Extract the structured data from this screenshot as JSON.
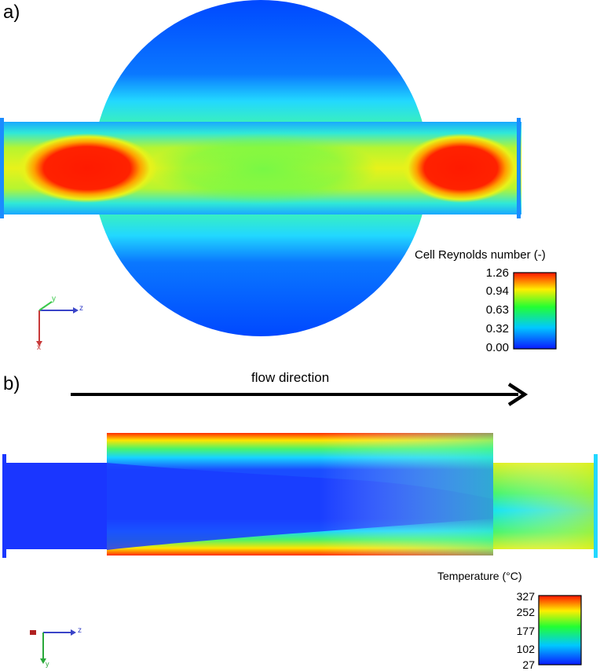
{
  "panel_a": {
    "label": "a)",
    "colorbar": {
      "title": "Cell Reynolds number (-)",
      "ticks": [
        "1.26",
        "0.94",
        "0.63",
        "0.32",
        "0.00"
      ]
    },
    "axes": {
      "horizontal": "z",
      "vertical": "x",
      "depth": "y"
    }
  },
  "panel_b": {
    "label": "b)",
    "flow_label": "flow direction",
    "colorbar": {
      "title": "Temperature (°C)",
      "ticks": [
        "327",
        "252",
        "177",
        "102",
        "27"
      ]
    },
    "axes": {
      "horizontal": "z",
      "vertical": "y"
    }
  },
  "colors": {
    "max": "#ff0000",
    "high": "#ffff00",
    "mid": "#00ff00",
    "low": "#00ffff",
    "min": "#0000ff"
  }
}
